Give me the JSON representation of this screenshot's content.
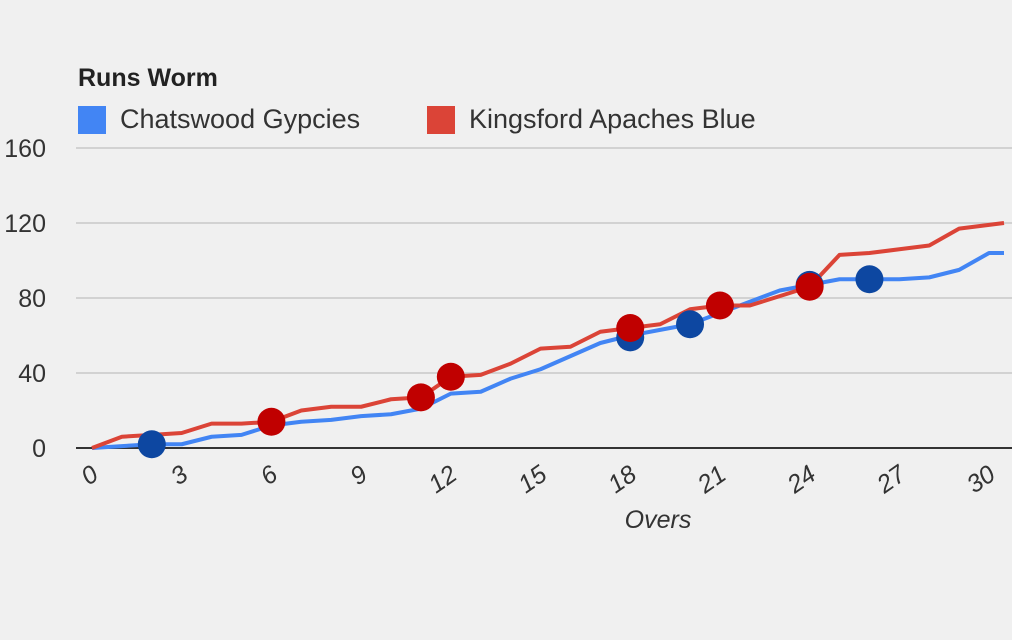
{
  "chart_data": {
    "type": "line",
    "title": "Runs Worm",
    "xlabel": "Overs",
    "ylabel": "",
    "xlim": [
      0,
      30.5
    ],
    "ylim": [
      0,
      160
    ],
    "x_ticks": [
      "0",
      "3",
      "6",
      "9",
      "12",
      "15",
      "18",
      "21",
      "24",
      "27",
      "30"
    ],
    "y_ticks": [
      "0",
      "40",
      "80",
      "120",
      "160"
    ],
    "grid": true,
    "legend_position": "top-left",
    "series": [
      {
        "name": "Chatswood Gypcies",
        "color": "#4285f4",
        "wicket_color": "#0d47a1",
        "x": [
          0,
          1,
          2,
          3,
          4,
          5,
          6,
          7,
          8,
          9,
          10,
          11,
          12,
          13,
          14,
          15,
          16,
          17,
          18,
          19,
          20,
          21,
          22,
          23,
          24,
          25,
          26,
          27,
          28,
          29,
          30,
          30.5
        ],
        "y": [
          0,
          1,
          2,
          2,
          6,
          7,
          12,
          14,
          15,
          17,
          18,
          21,
          29,
          30,
          37,
          42,
          49,
          56,
          60,
          63,
          66,
          72,
          78,
          84,
          87,
          90,
          90,
          90,
          91,
          95,
          104,
          104
        ],
        "wickets": [
          [
            2,
            2
          ],
          [
            18,
            59
          ],
          [
            20,
            66
          ],
          [
            24,
            87
          ],
          [
            26,
            90
          ]
        ]
      },
      {
        "name": "Kingsford Apaches Blue",
        "color": "#db4437",
        "wicket_color": "#c00000",
        "x": [
          0,
          1,
          2,
          3,
          4,
          5,
          6,
          7,
          8,
          9,
          10,
          11,
          12,
          13,
          14,
          15,
          16,
          17,
          18,
          19,
          20,
          21,
          22,
          23,
          24,
          25,
          26,
          27,
          28,
          29,
          30,
          30.5
        ],
        "y": [
          0,
          6,
          7,
          8,
          13,
          13,
          14,
          20,
          22,
          22,
          26,
          27,
          38,
          39,
          45,
          53,
          54,
          62,
          64,
          66,
          74,
          76,
          76,
          81,
          86,
          103,
          104,
          106,
          108,
          117,
          119,
          120
        ],
        "wickets": [
          [
            6,
            14
          ],
          [
            11,
            27
          ],
          [
            12,
            38
          ],
          [
            18,
            64
          ],
          [
            21,
            76
          ],
          [
            24,
            86
          ]
        ]
      }
    ]
  }
}
